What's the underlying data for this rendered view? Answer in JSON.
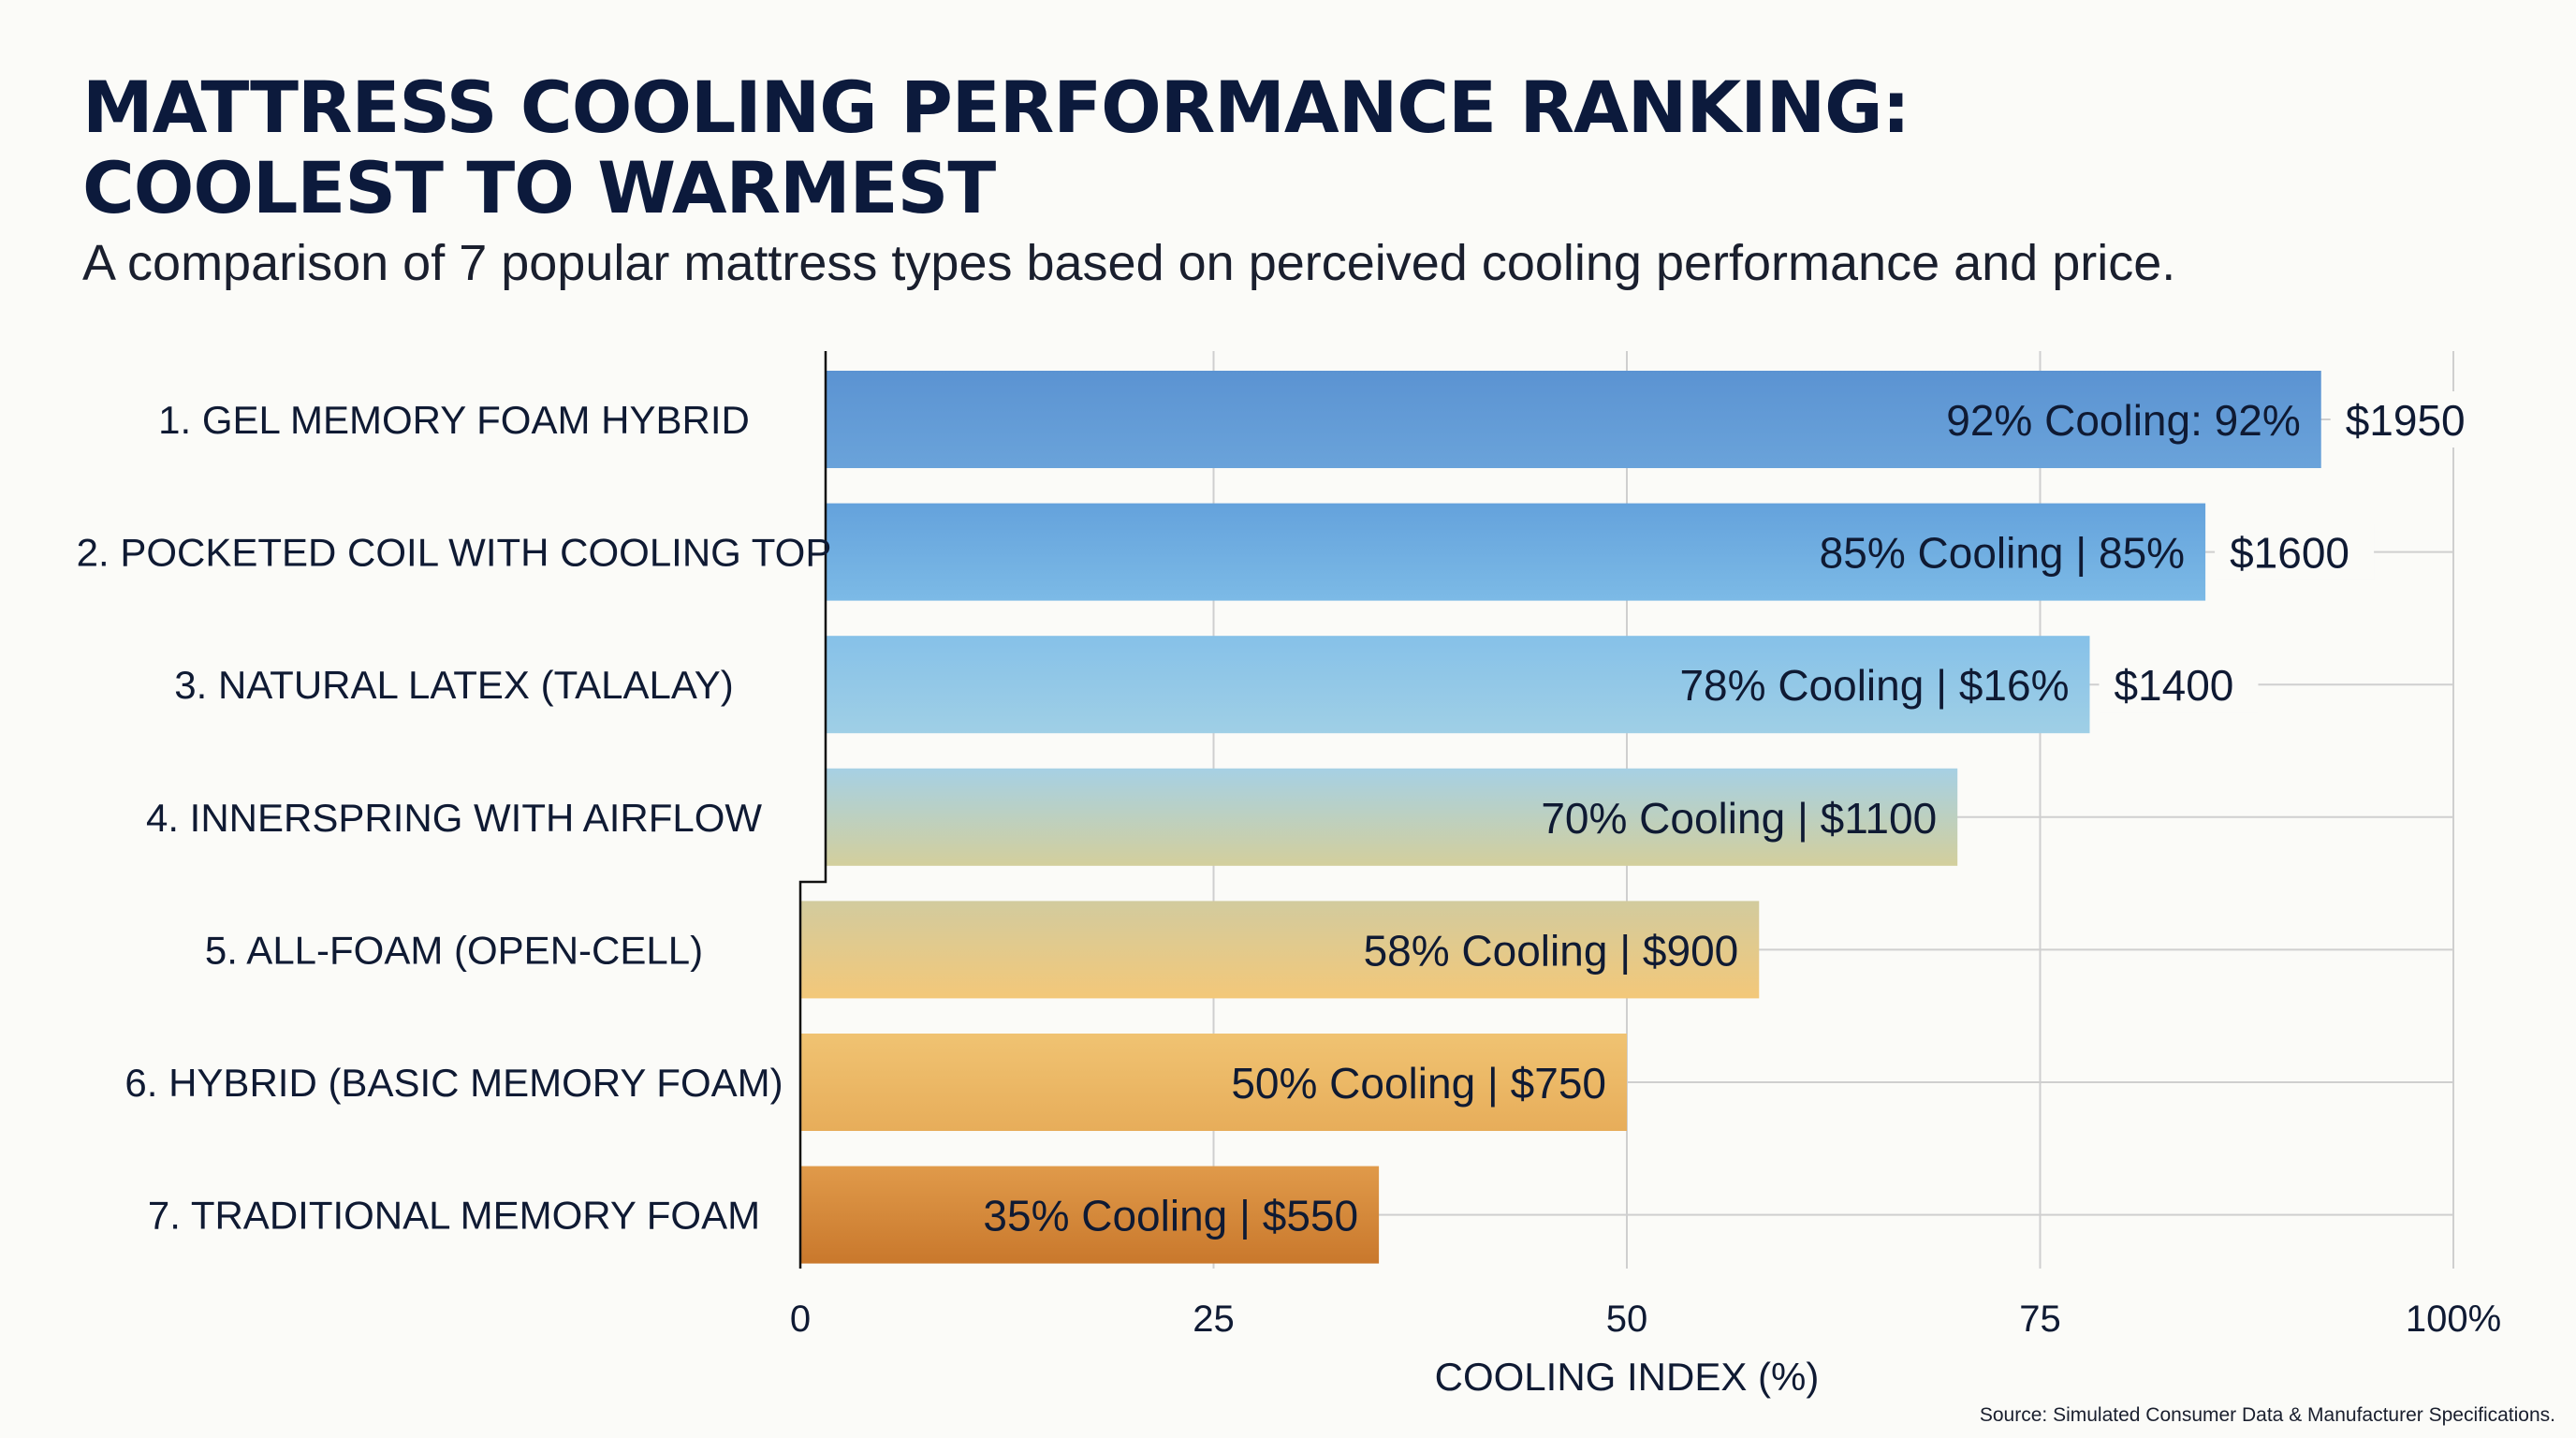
{
  "header": {
    "title_line1": "MATTRESS COOLING PERFORMANCE RANKING:",
    "title_line2": "COOLEST TO WARMEST",
    "subtitle": "A comparison of 7 popular mattress types based on perceived cooling performance and price."
  },
  "footer": {
    "source": "Source: Simulated Consumer Data & Manufacturer Specifications."
  },
  "chart_data": {
    "type": "bar",
    "orientation": "horizontal",
    "categories": [
      "1. GEL MEMORY FOAM HYBRID",
      "2. POCKETED COIL WITH COOLING TOP",
      "3. NATURAL LATEX (TALALAY)",
      "4. INNERSPRING WITH AIRFLOW",
      "5. ALL-FOAM (OPEN-CELL)",
      "6. HYBRID (BASIC MEMORY FOAM)",
      "7. TRADITIONAL MEMORY FOAM"
    ],
    "values": [
      92,
      85,
      78,
      70,
      58,
      50,
      35
    ],
    "bar_labels": [
      "92% Cooling: 92%",
      "85% Cooling | 85%",
      "78% Cooling | $16%",
      "70% Cooling | $1100",
      "58% Cooling | $900",
      "50% Cooling | $750",
      "35% Cooling | $550"
    ],
    "price_labels": [
      "$1950",
      "$1600",
      "$1400",
      "",
      "",
      "",
      ""
    ],
    "bar_colors": [
      [
        "#5b93d2",
        "#6aa3da"
      ],
      [
        "#64a2dc",
        "#7cbae6"
      ],
      [
        "#86c1e8",
        "#9fcfe6"
      ],
      [
        "#a6d0e4",
        "#d3cf9c"
      ],
      [
        "#d2cb9e",
        "#f3c879"
      ],
      [
        "#f0c372",
        "#e7ad5a"
      ],
      [
        "#e09a4a",
        "#c9782c"
      ]
    ],
    "xlabel": "COOLING INDEX (%)",
    "xlim": [
      0,
      100
    ],
    "xticks": [
      0,
      25,
      50,
      75,
      100
    ],
    "xtick_labels": [
      "0",
      "25",
      "50",
      "75",
      "100%"
    ],
    "grid": true
  }
}
